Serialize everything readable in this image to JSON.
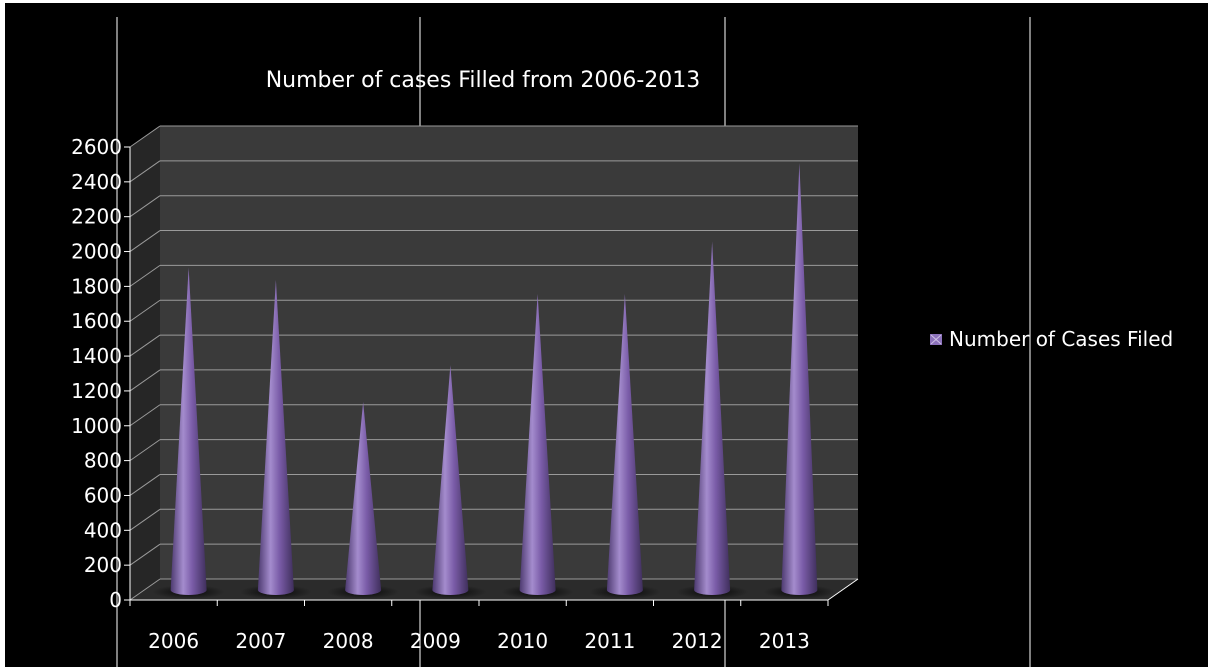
{
  "chart_data": {
    "type": "bar",
    "style": "3d-cone",
    "title": "Number of cases Filled from 2006-2013",
    "categories": [
      "2006",
      "2007",
      "2008",
      "2009",
      "2010",
      "2011",
      "2012",
      "2013"
    ],
    "series": [
      {
        "name": "Number of Cases Filed",
        "values": [
          1850,
          1780,
          1080,
          1290,
          1700,
          1700,
          2000,
          2450
        ]
      }
    ],
    "ylim": [
      0,
      2600
    ],
    "y_ticks": [
      "0",
      "200",
      "400",
      "600",
      "800",
      "1000",
      "1200",
      "1400",
      "1600",
      "1800",
      "2000",
      "2200",
      "2400",
      "2600"
    ],
    "grid": true,
    "legend_position": "right",
    "colors": {
      "background": "#000000",
      "wall": "#3a3a3a",
      "side_wall": "#2a2a2a",
      "floor": "#2f2f2f",
      "cone_base": "#7a5ca8",
      "cone_light": "#a48ccd",
      "cone_dark": "#4d3a70",
      "text": "#ffffff",
      "grid": "#9a9a9a"
    }
  }
}
